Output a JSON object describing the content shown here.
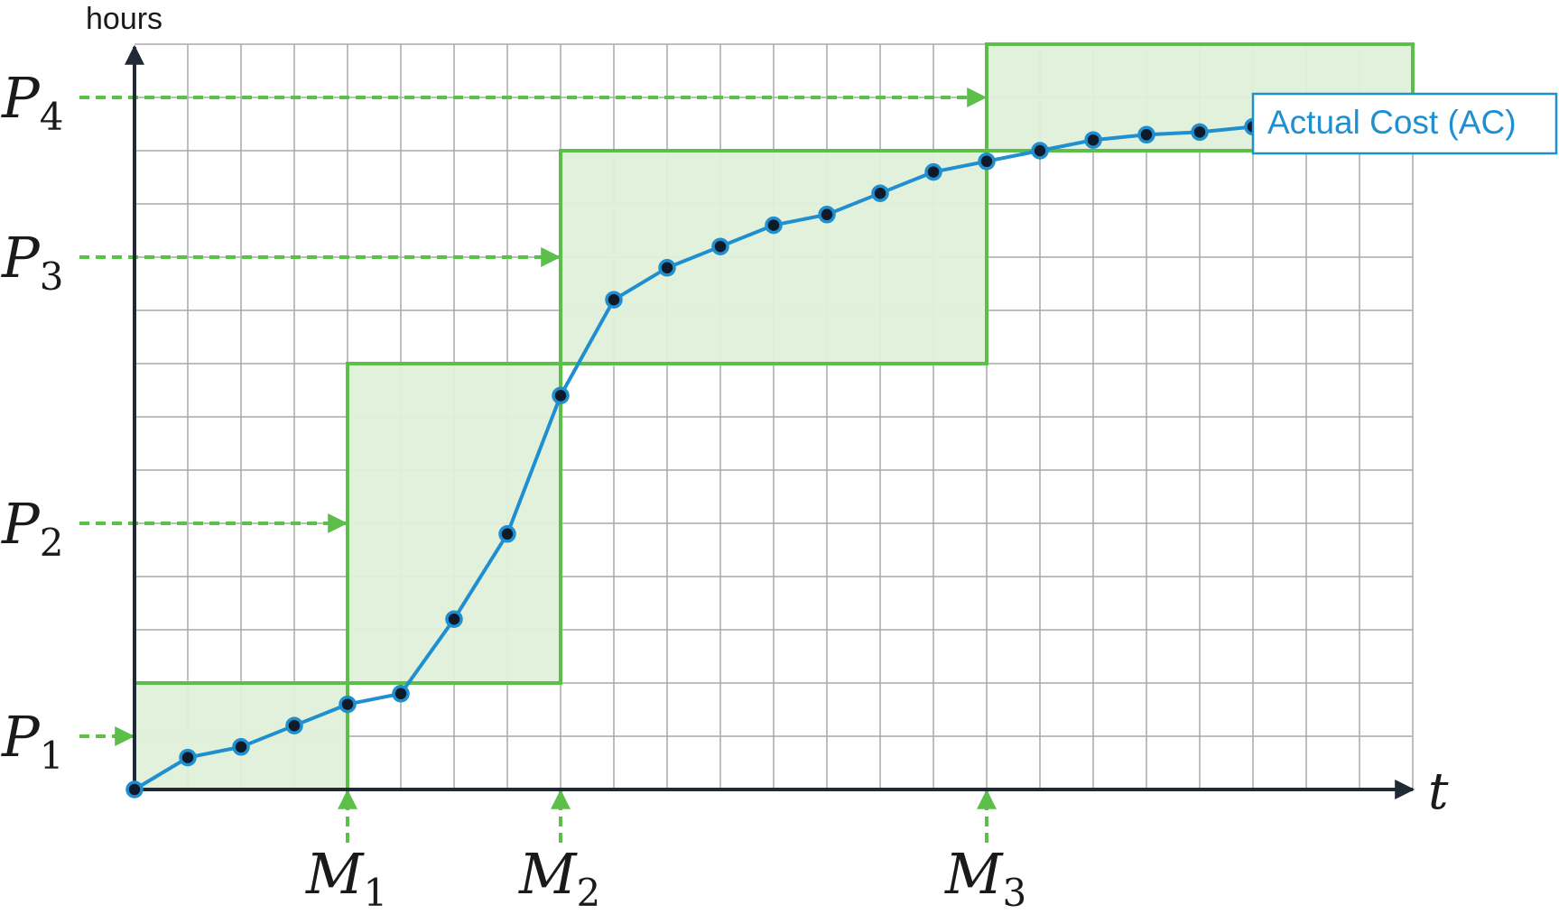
{
  "chart_data": {
    "type": "line",
    "xlabel": "t",
    "ylabel": "hours",
    "grid": true,
    "xlim": [
      0,
      24
    ],
    "ylim": [
      0,
      14
    ],
    "milestones": [
      {
        "main": "M",
        "sub": "1",
        "x": 4
      },
      {
        "main": "M",
        "sub": "2",
        "x": 8
      },
      {
        "main": "M",
        "sub": "3",
        "x": 16
      }
    ],
    "phases": [
      {
        "main": "P",
        "sub": "1",
        "y": 1
      },
      {
        "main": "P",
        "sub": "2",
        "y": 5
      },
      {
        "main": "P",
        "sub": "3",
        "y": 10
      },
      {
        "main": "P",
        "sub": "4",
        "y": 13
      }
    ],
    "planned_blocks": [
      {
        "x0": 0,
        "x1": 4,
        "y0": 0,
        "y1": 2
      },
      {
        "x0": 4,
        "x1": 8,
        "y0": 2,
        "y1": 8
      },
      {
        "x0": 8,
        "x1": 16,
        "y0": 8,
        "y1": 12
      },
      {
        "x0": 16,
        "x1": 24,
        "y0": 12,
        "y1": 14
      }
    ],
    "series": [
      {
        "name": "Actual Cost (AC)",
        "color": "#1f8fcf",
        "x": [
          0,
          1,
          2,
          3,
          4,
          5,
          6,
          7,
          8,
          9,
          10,
          11,
          12,
          13,
          14,
          15,
          16,
          17,
          18,
          19,
          20,
          21,
          22
        ],
        "values": [
          0,
          0.6,
          0.8,
          1.2,
          1.6,
          1.8,
          3.2,
          4.8,
          7.4,
          9.2,
          9.8,
          10.2,
          10.6,
          10.8,
          11.2,
          11.6,
          11.8,
          12.0,
          12.2,
          12.3,
          12.35,
          12.45,
          12.55
        ]
      }
    ],
    "colors": {
      "planned_fill": "#dff0da",
      "planned_stroke": "#5cbf4a",
      "arrow": "#5cbf4a",
      "axis": "#1f2a36",
      "grid": "#a8a8a8",
      "marker_fill": "#0f1a2a"
    }
  }
}
